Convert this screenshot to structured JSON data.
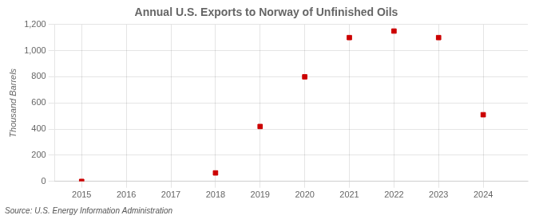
{
  "chart_data": {
    "type": "scatter",
    "title": "Annual U.S. Exports to Norway of Unfinished Oils",
    "y_label": "Thousand Barrels",
    "source": "Source: U.S. Energy Information Administration",
    "x": [
      2015,
      2016,
      2017,
      2018,
      2019,
      2020,
      2021,
      2022,
      2023,
      2024
    ],
    "values": [
      0,
      null,
      null,
      65,
      420,
      800,
      1100,
      1150,
      1100,
      510
    ],
    "color": "#cc0000",
    "marker": "square",
    "xlim": [
      2014.4,
      2025.0
    ],
    "xticks": [
      2015,
      2016,
      2017,
      2018,
      2019,
      2020,
      2021,
      2022,
      2023,
      2024
    ],
    "ylim": [
      0,
      1200
    ],
    "yticks": [
      0,
      200,
      400,
      600,
      800,
      {
        "value": 1000,
        "label": "1,000"
      },
      {
        "value": 1200,
        "label": "1,200"
      }
    ],
    "grid": true
  }
}
